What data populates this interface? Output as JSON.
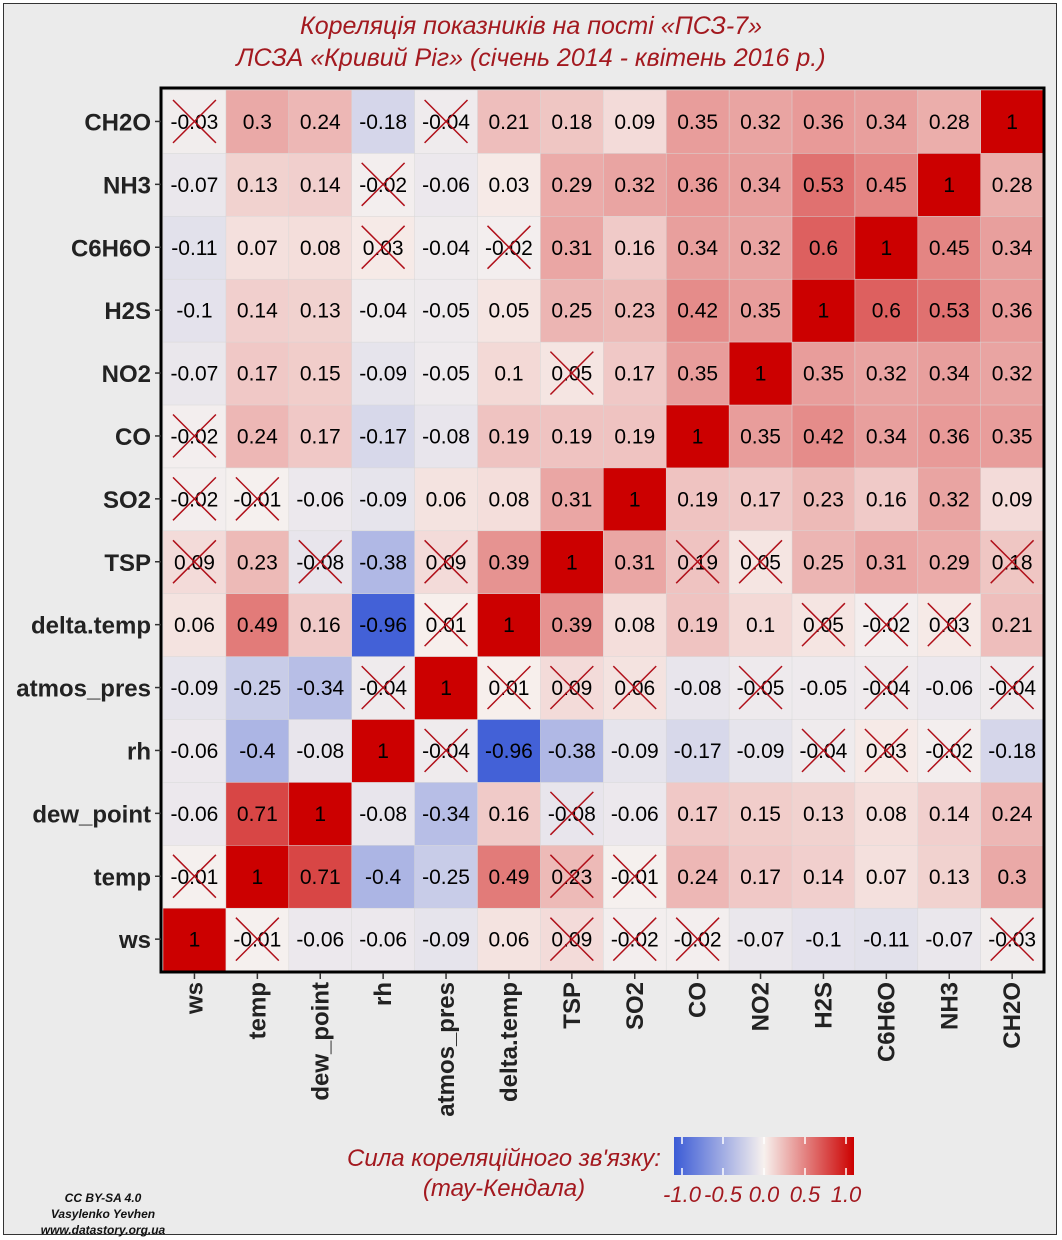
{
  "title_line1": "Кореляція показників на пості «ПСЗ-7»",
  "title_line2": "ЛСЗА «Кривий Ріг» (січень 2014 - квітень 2016 р.)",
  "legend": {
    "title_line1": "Сила кореляційного зв'язку:",
    "title_line2": "(тау-Кендала)",
    "ticks": [
      "-1.0",
      "-0.5",
      "0.0",
      "0.5",
      "1.0"
    ],
    "colors": {
      "low": "#3b5bd6",
      "mid": "#f7f1ee",
      "high": "#cc0000"
    }
  },
  "credit": {
    "license": "CC BY-SA 4.0",
    "author": "Vasylenko Yevhen",
    "site": "www.datastory.org.ua"
  },
  "chart_data": {
    "type": "heatmap",
    "variables": [
      "ws",
      "temp",
      "dew_point",
      "rh",
      "atmos_pres",
      "delta.temp",
      "TSP",
      "SO2",
      "CO",
      "NO2",
      "H2S",
      "C6H6O",
      "NH3",
      "CH2O"
    ],
    "range": [
      -1,
      1
    ],
    "matrix": [
      [
        1,
        -0.01,
        -0.06,
        -0.06,
        -0.09,
        0.06,
        0.09,
        -0.02,
        -0.02,
        -0.07,
        -0.1,
        -0.11,
        -0.07,
        -0.03
      ],
      [
        -0.01,
        1,
        0.71,
        -0.4,
        -0.25,
        0.49,
        0.23,
        -0.01,
        0.24,
        0.17,
        0.14,
        0.07,
        0.13,
        0.3
      ],
      [
        -0.06,
        0.71,
        1,
        -0.08,
        -0.34,
        0.16,
        -0.08,
        -0.06,
        0.17,
        0.15,
        0.13,
        0.08,
        0.14,
        0.24
      ],
      [
        -0.06,
        -0.4,
        -0.08,
        1,
        -0.04,
        -0.96,
        -0.38,
        -0.09,
        -0.17,
        -0.09,
        -0.04,
        0.03,
        -0.02,
        -0.18
      ],
      [
        -0.09,
        -0.25,
        -0.34,
        -0.04,
        1,
        0.01,
        0.09,
        0.06,
        -0.08,
        -0.05,
        -0.05,
        -0.04,
        -0.06,
        -0.04
      ],
      [
        0.06,
        0.49,
        0.16,
        -0.96,
        0.01,
        1,
        0.39,
        0.08,
        0.19,
        0.1,
        0.05,
        -0.02,
        0.03,
        0.21
      ],
      [
        0.09,
        0.23,
        -0.08,
        -0.38,
        0.09,
        0.39,
        1,
        0.31,
        0.19,
        0.05,
        0.25,
        0.31,
        0.29,
        0.18
      ],
      [
        -0.02,
        -0.01,
        -0.06,
        -0.09,
        0.06,
        0.08,
        0.31,
        1,
        0.19,
        0.17,
        0.23,
        0.16,
        0.32,
        0.09
      ],
      [
        -0.02,
        0.24,
        0.17,
        -0.17,
        -0.08,
        0.19,
        0.19,
        0.19,
        1,
        0.35,
        0.42,
        0.34,
        0.36,
        0.35
      ],
      [
        -0.07,
        0.17,
        0.15,
        -0.09,
        -0.05,
        0.1,
        0.05,
        0.17,
        0.35,
        1,
        0.35,
        0.32,
        0.34,
        0.32
      ],
      [
        -0.1,
        0.14,
        0.13,
        -0.04,
        -0.05,
        0.05,
        0.25,
        0.23,
        0.42,
        0.35,
        1,
        0.6,
        0.53,
        0.36
      ],
      [
        -0.11,
        0.07,
        0.08,
        0.03,
        -0.04,
        -0.02,
        0.31,
        0.16,
        0.34,
        0.32,
        0.6,
        1,
        0.45,
        0.34
      ],
      [
        -0.07,
        0.13,
        0.14,
        -0.02,
        -0.06,
        0.03,
        0.29,
        0.32,
        0.36,
        0.34,
        0.53,
        0.45,
        1,
        0.28
      ],
      [
        -0.03,
        0.3,
        0.24,
        -0.18,
        -0.04,
        0.21,
        0.18,
        0.09,
        0.35,
        0.32,
        0.36,
        0.34,
        0.28,
        1
      ]
    ],
    "not_significant": [
      [
        0,
        1
      ],
      [
        0,
        6
      ],
      [
        0,
        7
      ],
      [
        0,
        8
      ],
      [
        0,
        13
      ],
      [
        1,
        0
      ],
      [
        1,
        7
      ],
      [
        2,
        6
      ],
      [
        3,
        4
      ],
      [
        3,
        11
      ],
      [
        3,
        12
      ],
      [
        4,
        3
      ],
      [
        4,
        5
      ],
      [
        4,
        6
      ],
      [
        4,
        13
      ],
      [
        5,
        4
      ],
      [
        5,
        11
      ],
      [
        6,
        0
      ],
      [
        6,
        1
      ],
      [
        6,
        2
      ],
      [
        6,
        4
      ],
      [
        6,
        9
      ],
      [
        7,
        0
      ],
      [
        7,
        1
      ],
      [
        7,
        4
      ],
      [
        8,
        0
      ],
      [
        8,
        6
      ],
      [
        9,
        4
      ],
      [
        9,
        6
      ],
      [
        10,
        3
      ],
      [
        10,
        5
      ],
      [
        11,
        3
      ],
      [
        11,
        4
      ],
      [
        11,
        5
      ],
      [
        12,
        3
      ],
      [
        12,
        5
      ],
      [
        13,
        0
      ],
      [
        13,
        4
      ],
      [
        13,
        6
      ]
    ]
  }
}
